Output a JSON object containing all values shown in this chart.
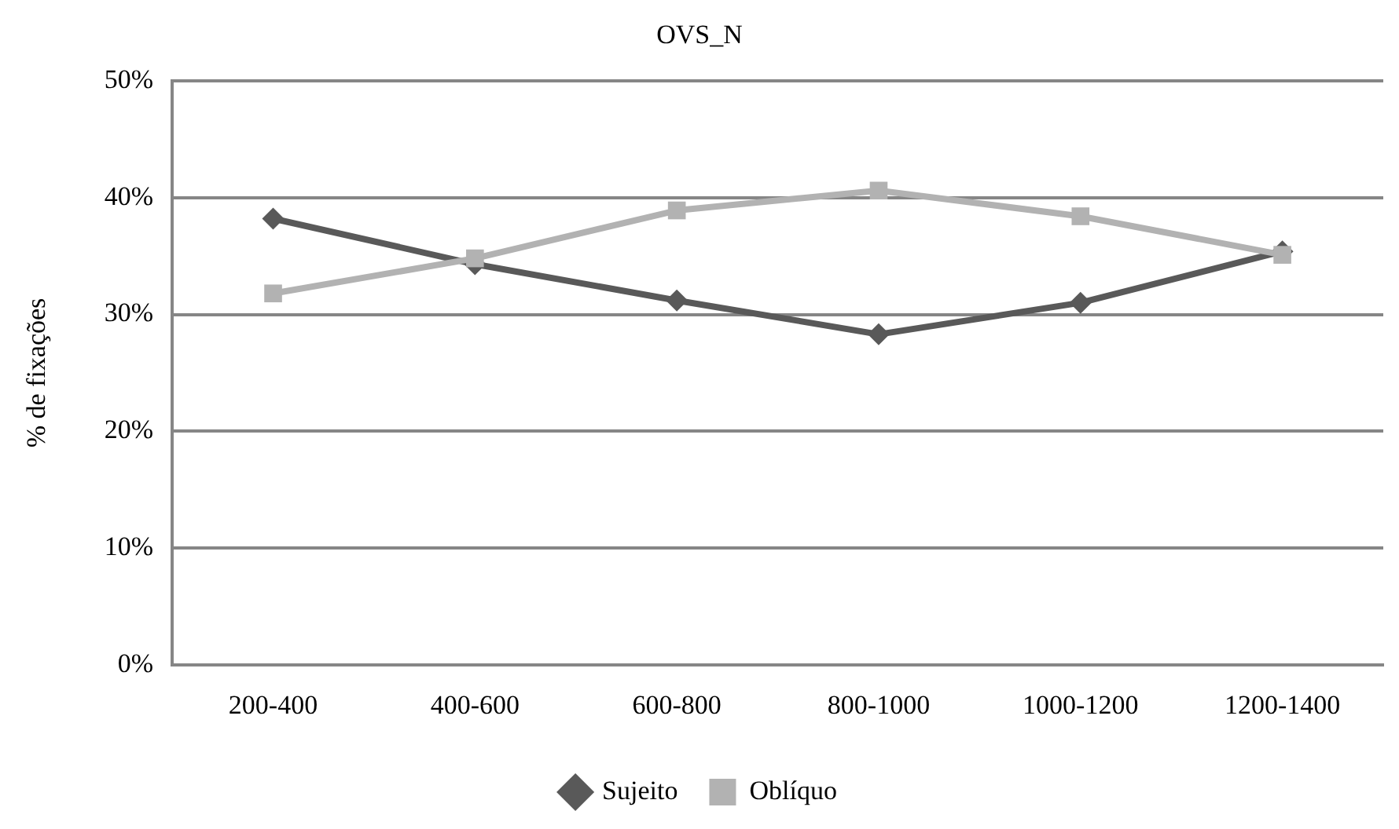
{
  "chart_data": {
    "type": "line",
    "title": "OVS_N",
    "ylabel": "% de fixações",
    "categories": [
      "200-400",
      "400-600",
      "600-800",
      "800-1000",
      "1000-1200",
      "1200-1400"
    ],
    "series": [
      {
        "name": "Sujeito",
        "color": "#595959",
        "marker": "diamond",
        "values": [
          38.2,
          34.3,
          31.2,
          28.3,
          31.0,
          35.4
        ]
      },
      {
        "name": "Oblíquo",
        "color": "#b2b2b2",
        "marker": "square",
        "values": [
          31.8,
          34.8,
          38.9,
          40.6,
          38.4,
          35.1
        ]
      }
    ],
    "ylim": [
      0,
      50
    ],
    "yticks": [
      {
        "value": 0,
        "label": "0%"
      },
      {
        "value": 10,
        "label": "10%"
      },
      {
        "value": 20,
        "label": "20%"
      },
      {
        "value": 30,
        "label": "30%"
      },
      {
        "value": 40,
        "label": "40%"
      },
      {
        "value": 50,
        "label": "50%"
      }
    ],
    "grid": "y",
    "legend": "bottom",
    "line_style": "solid"
  }
}
